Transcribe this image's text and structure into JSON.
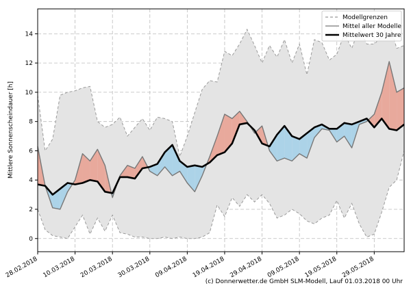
{
  "chart_data": {
    "type": "line",
    "ylabel": "Mittlere Sonnenscheindauer [h]",
    "footer": "(c) Donnerwetter.de GmbH SLM-Modell, Lauf 01.03.2018 00 Uhr",
    "x": [
      "2018-02-28",
      "2018-03-02",
      "2018-03-04",
      "2018-03-06",
      "2018-03-08",
      "2018-03-10",
      "2018-03-12",
      "2018-03-14",
      "2018-03-16",
      "2018-03-18",
      "2018-03-20",
      "2018-03-22",
      "2018-03-24",
      "2018-03-26",
      "2018-03-28",
      "2018-03-30",
      "2018-04-01",
      "2018-04-03",
      "2018-04-05",
      "2018-04-07",
      "2018-04-09",
      "2018-04-11",
      "2018-04-13",
      "2018-04-15",
      "2018-04-17",
      "2018-04-19",
      "2018-04-21",
      "2018-04-23",
      "2018-04-25",
      "2018-04-27",
      "2018-04-29",
      "2018-05-01",
      "2018-05-03",
      "2018-05-05",
      "2018-05-07",
      "2018-05-09",
      "2018-05-11",
      "2018-05-13",
      "2018-05-15",
      "2018-05-17",
      "2018-05-19",
      "2018-05-21",
      "2018-05-23",
      "2018-05-25",
      "2018-05-27",
      "2018-05-29",
      "2018-05-31",
      "2018-06-02",
      "2018-06-04",
      "2018-06-06"
    ],
    "series": [
      {
        "name": "Modellgrenzen",
        "color": "#999999",
        "style": "dashed",
        "band_color": "#e4e4e4",
        "high": [
          9.8,
          6.0,
          6.8,
          9.8,
          10.0,
          10.1,
          10.3,
          10.4,
          8.0,
          7.6,
          7.8,
          8.3,
          7.0,
          7.6,
          8.2,
          7.4,
          8.3,
          8.2,
          8.0,
          5.6,
          7.0,
          8.6,
          10.2,
          10.8,
          10.7,
          12.8,
          12.5,
          13.3,
          14.3,
          13.2,
          12.0,
          13.2,
          12.4,
          13.6,
          12.0,
          13.3,
          11.2,
          13.6,
          13.4,
          12.2,
          12.6,
          14.0,
          13.0,
          14.4,
          13.3,
          13.3,
          13.8,
          14.8,
          13.0,
          13.2
        ],
        "low": [
          2.0,
          0.6,
          0.2,
          0.1,
          0.0,
          0.8,
          1.6,
          0.3,
          1.4,
          0.5,
          1.6,
          0.4,
          0.3,
          0.1,
          0.1,
          0.0,
          0.0,
          0.1,
          0.0,
          0.1,
          0.0,
          0.0,
          0.1,
          0.4,
          2.3,
          1.5,
          2.8,
          2.2,
          3.0,
          2.5,
          3.0,
          2.4,
          1.4,
          1.6,
          2.0,
          1.7,
          1.2,
          1.0,
          1.4,
          1.6,
          2.6,
          1.4,
          2.4,
          1.0,
          0.1,
          0.3,
          1.8,
          3.5,
          4.0,
          6.0
        ]
      },
      {
        "name": "Mittel aller Modelle",
        "color": "#777777",
        "style": "solid",
        "values": [
          6.3,
          3.6,
          2.1,
          2.0,
          3.2,
          4.0,
          5.8,
          5.3,
          6.1,
          5.0,
          2.8,
          4.3,
          5.0,
          4.8,
          5.6,
          4.6,
          4.3,
          4.9,
          4.3,
          4.6,
          3.8,
          3.2,
          4.3,
          5.6,
          7.0,
          8.5,
          8.2,
          8.7,
          8.0,
          7.2,
          7.7,
          6.0,
          5.3,
          5.5,
          5.3,
          5.8,
          5.5,
          6.9,
          7.5,
          7.4,
          6.6,
          7.0,
          6.2,
          7.8,
          8.0,
          8.5,
          10.0,
          12.1,
          10.0,
          10.3
        ]
      },
      {
        "name": "Mittelwert 30 Jahre",
        "color": "#000000",
        "style": "thick",
        "values": [
          3.7,
          3.6,
          3.0,
          3.4,
          3.8,
          3.7,
          3.8,
          4.0,
          3.9,
          3.2,
          3.1,
          4.2,
          4.2,
          4.1,
          4.8,
          4.9,
          5.1,
          5.9,
          6.4,
          5.3,
          4.9,
          5.0,
          4.9,
          5.2,
          5.7,
          5.9,
          6.5,
          7.8,
          7.9,
          7.4,
          6.5,
          6.3,
          7.1,
          7.7,
          7.0,
          6.8,
          7.2,
          7.6,
          7.8,
          7.5,
          7.5,
          7.9,
          7.8,
          8.0,
          8.2,
          7.6,
          8.2,
          7.5,
          7.4,
          7.8
        ]
      }
    ],
    "above_color": "#e8a99c",
    "below_color": "#acd3e8",
    "xlim": [
      "2018-02-28",
      "2018-06-06"
    ],
    "xticks": [
      {
        "value": "2018-02-28",
        "label": "28.02.2018"
      },
      {
        "value": "2018-03-10",
        "label": "10.03.2018"
      },
      {
        "value": "2018-03-20",
        "label": "20.03.2018"
      },
      {
        "value": "2018-03-30",
        "label": "30.03.2018"
      },
      {
        "value": "2018-04-09",
        "label": "09.04.2018"
      },
      {
        "value": "2018-04-19",
        "label": "19.04.2018"
      },
      {
        "value": "2018-04-29",
        "label": "29.04.2018"
      },
      {
        "value": "2018-05-09",
        "label": "09.05.2018"
      },
      {
        "value": "2018-05-19",
        "label": "19.05.2018"
      },
      {
        "value": "2018-05-29",
        "label": "29.05.2018"
      }
    ],
    "ylim": [
      -0.9,
      15.7
    ],
    "yticks": [
      0,
      2,
      4,
      6,
      8,
      10,
      12,
      14
    ],
    "grid": true,
    "legend": "upper right"
  }
}
